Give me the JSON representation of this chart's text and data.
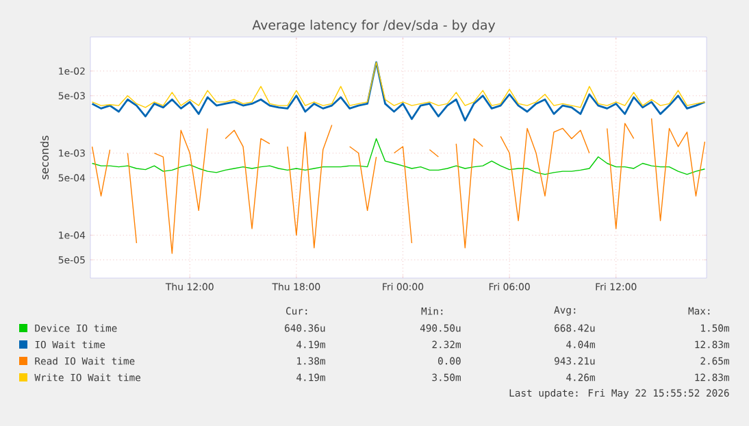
{
  "chart_data": {
    "type": "line",
    "title": "Average latency for /dev/sda - by day",
    "ylabel": "seconds",
    "log": "y",
    "grid": true,
    "legend": "bottom",
    "marker": "none",
    "line_style": "solid",
    "x": [
      "2026-05-21T06:30",
      "2026-05-21T07:00",
      "2026-05-21T07:30",
      "2026-05-21T08:00",
      "2026-05-21T08:30",
      "2026-05-21T09:00",
      "2026-05-21T09:30",
      "2026-05-21T10:00",
      "2026-05-21T10:30",
      "2026-05-21T11:00",
      "2026-05-21T11:30",
      "2026-05-21T12:00",
      "2026-05-21T12:30",
      "2026-05-21T13:00",
      "2026-05-21T13:30",
      "2026-05-21T14:00",
      "2026-05-21T14:30",
      "2026-05-21T15:00",
      "2026-05-21T15:30",
      "2026-05-21T16:00",
      "2026-05-21T16:30",
      "2026-05-21T17:00",
      "2026-05-21T17:30",
      "2026-05-21T18:00",
      "2026-05-21T18:30",
      "2026-05-21T19:00",
      "2026-05-21T19:30",
      "2026-05-21T20:00",
      "2026-05-21T20:30",
      "2026-05-21T21:00",
      "2026-05-21T21:30",
      "2026-05-21T22:00",
      "2026-05-21T22:30",
      "2026-05-21T23:00",
      "2026-05-21T23:30",
      "2026-05-22T00:00",
      "2026-05-22T00:30",
      "2026-05-22T01:00",
      "2026-05-22T01:30",
      "2026-05-22T02:00",
      "2026-05-22T02:30",
      "2026-05-22T03:00",
      "2026-05-22T03:30",
      "2026-05-22T04:00",
      "2026-05-22T04:30",
      "2026-05-22T05:00",
      "2026-05-22T05:30",
      "2026-05-22T06:00",
      "2026-05-22T06:30",
      "2026-05-22T07:00",
      "2026-05-22T07:30",
      "2026-05-22T08:00",
      "2026-05-22T08:30",
      "2026-05-22T09:00",
      "2026-05-22T09:30",
      "2026-05-22T10:00",
      "2026-05-22T10:30",
      "2026-05-22T11:00",
      "2026-05-22T11:30",
      "2026-05-22T12:00",
      "2026-05-22T12:30",
      "2026-05-22T13:00",
      "2026-05-22T13:30",
      "2026-05-22T14:00",
      "2026-05-22T14:30",
      "2026-05-22T15:00",
      "2026-05-22T15:30",
      "2026-05-22T16:00",
      "2026-05-22T16:30",
      "2026-05-22T17:00"
    ],
    "xlim": [
      "2026-05-21T06:24",
      "2026-05-22T17:06"
    ],
    "xticks": [
      {
        "value": "2026-05-21T12:00",
        "label": "Thu 12:00"
      },
      {
        "value": "2026-05-21T18:00",
        "label": "Thu 18:00"
      },
      {
        "value": "2026-05-22T00:00",
        "label": "Fri 00:00"
      },
      {
        "value": "2026-05-22T06:00",
        "label": "Fri 06:00"
      },
      {
        "value": "2026-05-22T12:00",
        "label": "Fri 12:00"
      }
    ],
    "ylim": [
      3e-05,
      0.026
    ],
    "yticks": [
      {
        "value": 5e-05,
        "label": "5e-05"
      },
      {
        "value": 0.0001,
        "label": "1e-04"
      },
      {
        "value": 0.0005,
        "label": "5e-04"
      },
      {
        "value": 0.001,
        "label": "1e-03"
      },
      {
        "value": 0.005,
        "label": "5e-03"
      },
      {
        "value": 0.01,
        "label": "1e-02"
      }
    ],
    "series": [
      {
        "name": "Device IO time",
        "color": "#00cc00",
        "values": [
          0.00075,
          0.0007,
          0.0007,
          0.00068,
          0.0007,
          0.00065,
          0.00063,
          0.0007,
          0.0006,
          0.00062,
          0.00068,
          0.00072,
          0.00065,
          0.0006,
          0.00058,
          0.00062,
          0.00065,
          0.00068,
          0.00065,
          0.00068,
          0.0007,
          0.00065,
          0.00062,
          0.00065,
          0.00062,
          0.00065,
          0.00068,
          0.00068,
          0.00068,
          0.0007,
          0.0007,
          0.00068,
          0.0015,
          0.0008,
          0.00075,
          0.0007,
          0.00065,
          0.00068,
          0.00062,
          0.00062,
          0.00065,
          0.0007,
          0.00065,
          0.00068,
          0.0007,
          0.0008,
          0.0007,
          0.00063,
          0.00065,
          0.00065,
          0.00058,
          0.00055,
          0.00058,
          0.0006,
          0.0006,
          0.00062,
          0.00065,
          0.0009,
          0.00075,
          0.00068,
          0.00068,
          0.00065,
          0.00075,
          0.0007,
          0.00068,
          0.00068,
          0.0006,
          0.00055,
          0.0006,
          0.00064
        ]
      },
      {
        "name": "IO Wait time",
        "color": "#0066b3",
        "values": [
          0.004,
          0.0035,
          0.0038,
          0.0032,
          0.0045,
          0.0038,
          0.0028,
          0.004,
          0.0036,
          0.0045,
          0.0035,
          0.0042,
          0.003,
          0.0048,
          0.0038,
          0.004,
          0.0042,
          0.0038,
          0.004,
          0.0045,
          0.0038,
          0.0036,
          0.0035,
          0.005,
          0.0032,
          0.004,
          0.0035,
          0.0038,
          0.0048,
          0.0035,
          0.0038,
          0.004,
          0.0128,
          0.004,
          0.0032,
          0.004,
          0.0026,
          0.0038,
          0.004,
          0.0028,
          0.0038,
          0.0045,
          0.0025,
          0.004,
          0.005,
          0.0035,
          0.0038,
          0.0052,
          0.0038,
          0.0032,
          0.004,
          0.0045,
          0.003,
          0.0038,
          0.0036,
          0.003,
          0.0052,
          0.0038,
          0.0035,
          0.004,
          0.003,
          0.0048,
          0.0036,
          0.0042,
          0.003,
          0.0038,
          0.005,
          0.0035,
          0.0038,
          0.00419
        ]
      },
      {
        "name": "Read IO Wait time",
        "color": "#ff8000",
        "values": [
          0.0012,
          0.0003,
          0.0011,
          null,
          0.001,
          8e-05,
          null,
          0.001,
          0.0009,
          6e-05,
          0.0019,
          0.001,
          0.0002,
          0.002,
          null,
          0.0015,
          0.0019,
          0.0012,
          0.00012,
          0.0015,
          0.0013,
          null,
          0.0012,
          0.0001,
          0.0018,
          7e-05,
          0.0011,
          0.0022,
          null,
          0.0012,
          0.001,
          0.0002,
          0.0009,
          null,
          0.001,
          0.0012,
          8e-05,
          null,
          0.0011,
          0.0009,
          null,
          0.0013,
          7e-05,
          0.0015,
          0.0012,
          null,
          0.0016,
          0.001,
          0.00015,
          0.002,
          0.001,
          0.0003,
          0.0018,
          0.002,
          0.0015,
          0.0019,
          0.001,
          null,
          0.002,
          0.00012,
          0.0023,
          0.0015,
          null,
          0.00265,
          0.00015,
          0.002,
          0.0012,
          0.0018,
          0.0003,
          0.00138
        ]
      },
      {
        "name": "Write IO Wait time",
        "color": "#ffcc00",
        "values": [
          0.0042,
          0.0038,
          0.0039,
          0.0038,
          0.005,
          0.004,
          0.0036,
          0.0042,
          0.0038,
          0.0055,
          0.0038,
          0.0045,
          0.0038,
          0.0058,
          0.0042,
          0.0042,
          0.0045,
          0.004,
          0.0042,
          0.0065,
          0.004,
          0.0038,
          0.0038,
          0.0058,
          0.0038,
          0.0042,
          0.0038,
          0.004,
          0.0065,
          0.0038,
          0.004,
          0.0042,
          0.0128,
          0.0045,
          0.0038,
          0.0042,
          0.0038,
          0.004,
          0.0042,
          0.0038,
          0.004,
          0.0055,
          0.0038,
          0.0042,
          0.0058,
          0.0038,
          0.004,
          0.006,
          0.004,
          0.0038,
          0.0042,
          0.0052,
          0.0038,
          0.004,
          0.0038,
          0.0036,
          0.0065,
          0.004,
          0.0038,
          0.0042,
          0.0038,
          0.0055,
          0.0038,
          0.0045,
          0.0038,
          0.004,
          0.0058,
          0.0038,
          0.004,
          0.00419
        ]
      }
    ],
    "annotations": [
      "Cur:",
      "Min:",
      "Avg:",
      "Max:",
      "640.36u",
      "490.50u",
      "668.42u",
      "1.50m",
      "4.19m",
      "2.32m",
      "4.04m",
      "12.83m",
      "1.38m",
      "0.00",
      "943.21u",
      "2.65m",
      "4.19m",
      "3.50m",
      "4.26m",
      "12.83m",
      "Last update: Fri May 22 15:55:52 2026"
    ]
  }
}
